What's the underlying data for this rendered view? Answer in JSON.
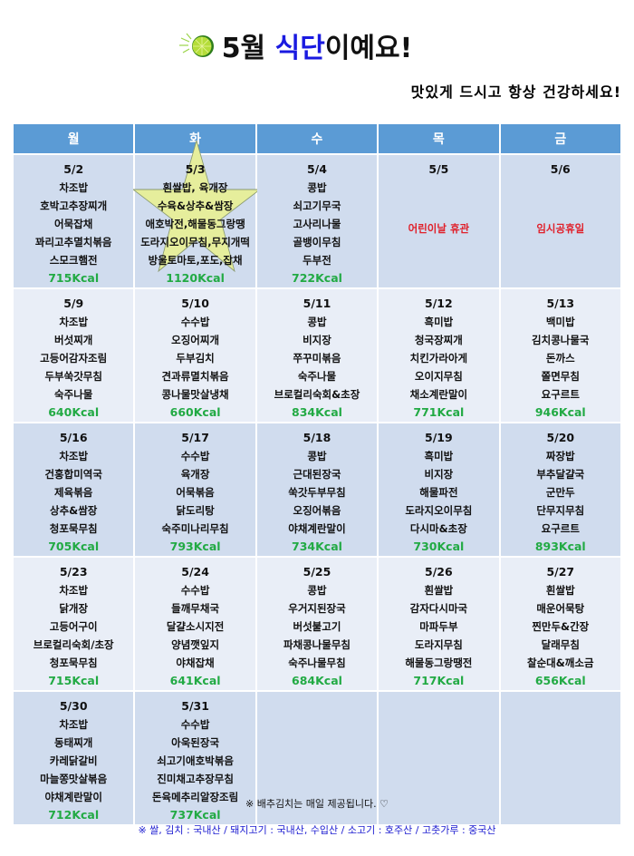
{
  "header": {
    "title_prefix": "5월 ",
    "title_accent": "식단",
    "title_suffix": "이예요!",
    "subtitle": "맛있게 드시고 항상 건강하세요!",
    "icon": "lime-icon"
  },
  "colors": {
    "header_bg": "#5b9bd5",
    "kcal": "#22aa44",
    "holiday": "#e0202a",
    "accent": "#1a1ae0",
    "row_dark": "#d0dcee",
    "row_light": "#e9eef7",
    "star": "#e6ee9c"
  },
  "days": [
    "월",
    "화",
    "수",
    "목",
    "금"
  ],
  "weeks": [
    [
      {
        "date": "5/2",
        "items": [
          "차조밥",
          "호박고추장찌개",
          "어묵잡채",
          "꽈리고추멸치볶음",
          "스모크햄전"
        ],
        "kcal": "715Kcal"
      },
      {
        "date": "5/3",
        "items": [
          "흰쌀밥, 육개장",
          "수육&상추&쌈장",
          "애호박전,해물동그랑땡",
          "도라지오이무침,무지개떡",
          "방울토마토,포도,잡채"
        ],
        "kcal": "1120Kcal",
        "special": true
      },
      {
        "date": "5/4",
        "items": [
          "콩밥",
          "쇠고기무국",
          "고사리나물",
          "골뱅이무침",
          "두부전"
        ],
        "kcal": "722Kcal"
      },
      {
        "date": "5/5",
        "holiday": "어린이날 휴관"
      },
      {
        "date": "5/6",
        "holiday": "임시공휴일"
      }
    ],
    [
      {
        "date": "5/9",
        "items": [
          "차조밥",
          "버섯찌개",
          "고등어감자조림",
          "두부쑥갓무침",
          "숙주나물"
        ],
        "kcal": "640Kcal"
      },
      {
        "date": "5/10",
        "items": [
          "수수밥",
          "오징어찌개",
          "두부김치",
          "견과류멸치볶음",
          "콩나물맛살냉채"
        ],
        "kcal": "660Kcal"
      },
      {
        "date": "5/11",
        "items": [
          "콩밥",
          "비지장",
          "쭈꾸미볶음",
          "숙주나물",
          "브로컬리숙회&초장"
        ],
        "kcal": "834Kcal"
      },
      {
        "date": "5/12",
        "items": [
          "흑미밥",
          "청국장찌개",
          "치킨가라아게",
          "오이지무침",
          "채소계란말이"
        ],
        "kcal": "771Kcal"
      },
      {
        "date": "5/13",
        "items": [
          "백미밥",
          "김치콩나물국",
          "돈까스",
          "쫄면무침",
          "요구르트"
        ],
        "kcal": "946Kcal"
      }
    ],
    [
      {
        "date": "5/16",
        "items": [
          "차조밥",
          "건홍합미역국",
          "제육볶음",
          "상추&쌈장",
          "청포묵무침"
        ],
        "kcal": "705Kcal"
      },
      {
        "date": "5/17",
        "items": [
          "수수밥",
          "육개장",
          "어묵볶음",
          "닭도리탕",
          "숙주미나리무침"
        ],
        "kcal": "793Kcal"
      },
      {
        "date": "5/18",
        "items": [
          "콩밥",
          "근대된장국",
          "쑥갓두부무침",
          "오징어볶음",
          "야채계란말이"
        ],
        "kcal": "734Kcal"
      },
      {
        "date": "5/19",
        "items": [
          "흑미밥",
          "비지장",
          "해물파전",
          "도라지오이무침",
          "다시마&초장"
        ],
        "kcal": "730Kcal"
      },
      {
        "date": "5/20",
        "items": [
          "짜장밥",
          "부추달걀국",
          "군만두",
          "단무지무침",
          "요구르트"
        ],
        "kcal": "893Kcal"
      }
    ],
    [
      {
        "date": "5/23",
        "items": [
          "차조밥",
          "닭개장",
          "고등어구이",
          "브로컬리숙회/초장",
          "청포묵무침"
        ],
        "kcal": "715Kcal"
      },
      {
        "date": "5/24",
        "items": [
          "수수밥",
          "들깨무채국",
          "달걀소시지전",
          "양념깻잎지",
          "야채잡채"
        ],
        "kcal": "641Kcal"
      },
      {
        "date": "5/25",
        "items": [
          "콩밥",
          "우거지된장국",
          "버섯불고기",
          "파채콩나물무침",
          "숙주나물무침"
        ],
        "kcal": "684Kcal"
      },
      {
        "date": "5/26",
        "items": [
          "흰쌀밥",
          "감자다시마국",
          "마파두부",
          "도라지무침",
          "해물동그랑땡전"
        ],
        "kcal": "717Kcal"
      },
      {
        "date": "5/27",
        "items": [
          "흰쌀밥",
          "매운어묵탕",
          "찐만두&간장",
          "달래무침",
          "찰순대&깨소금"
        ],
        "kcal": "656Kcal"
      }
    ],
    [
      {
        "date": "5/30",
        "items": [
          "차조밥",
          "동태찌개",
          "카레닭갈비",
          "마늘쫑맛살볶음",
          "야채계란말이"
        ],
        "kcal": "712Kcal"
      },
      {
        "date": "5/31",
        "items": [
          "수수밥",
          "아욱된장국",
          "쇠고기애호박볶음",
          "진미채고추장무침",
          "돈육메추리알장조림"
        ],
        "kcal": "737Kcal"
      },
      {},
      {},
      {}
    ]
  ],
  "footer": {
    "note": "※ 배추김치는 매일 제공됩니다. ♡",
    "origin": "※ 쌀, 김치 : 국내산 / 돼지고기 : 국내산, 수입산 / 소고기 : 호주산 / 고춧가루 : 중국산"
  }
}
